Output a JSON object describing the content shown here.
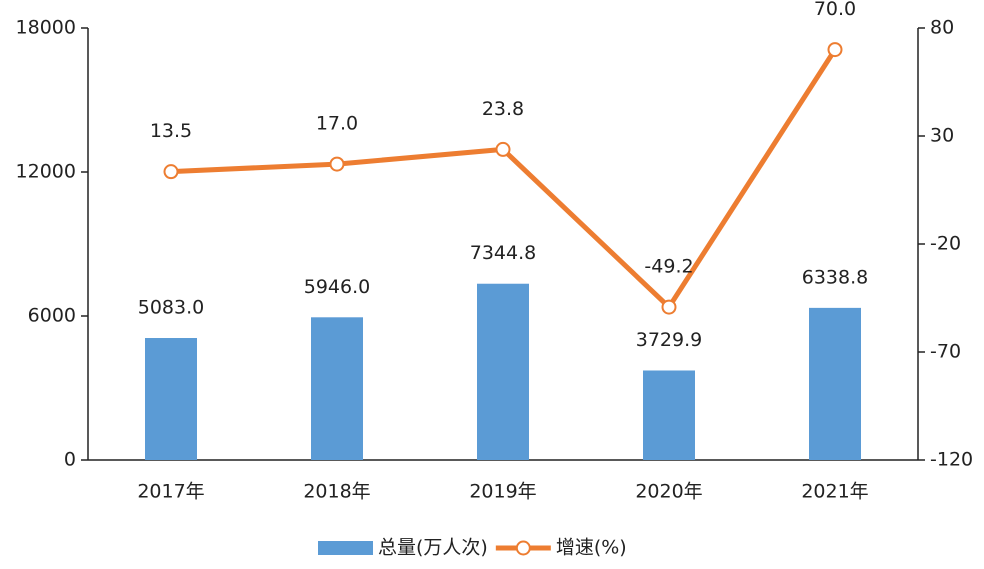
{
  "chart_data": {
    "type": "combo",
    "categories": [
      "2017年",
      "2018年",
      "2019年",
      "2020年",
      "2021年"
    ],
    "series": [
      {
        "name": "总量(万人次)",
        "type": "bar",
        "color": "#5b9bd5",
        "values": [
          5083.0,
          5946.0,
          7344.8,
          3729.9,
          6338.8
        ],
        "value_labels": [
          "5083.0",
          "5946.0",
          "7344.8",
          "3729.9",
          "6338.8"
        ]
      },
      {
        "name": "增速(%)",
        "type": "line",
        "axis": "y2",
        "color": "#ed7d31",
        "values": [
          13.5,
          17.0,
          23.8,
          -49.2,
          70.0
        ],
        "value_labels": [
          "13.5",
          "17.0",
          "23.8",
          "-49.2",
          "70.0"
        ]
      }
    ],
    "ylim": [
      0,
      18000
    ],
    "yticks": [
      0,
      6000,
      12000,
      18000
    ],
    "y2lim": [
      -120,
      80
    ],
    "y2ticks": [
      -120,
      -70,
      -20,
      30,
      80
    ],
    "legend": "bottom"
  }
}
